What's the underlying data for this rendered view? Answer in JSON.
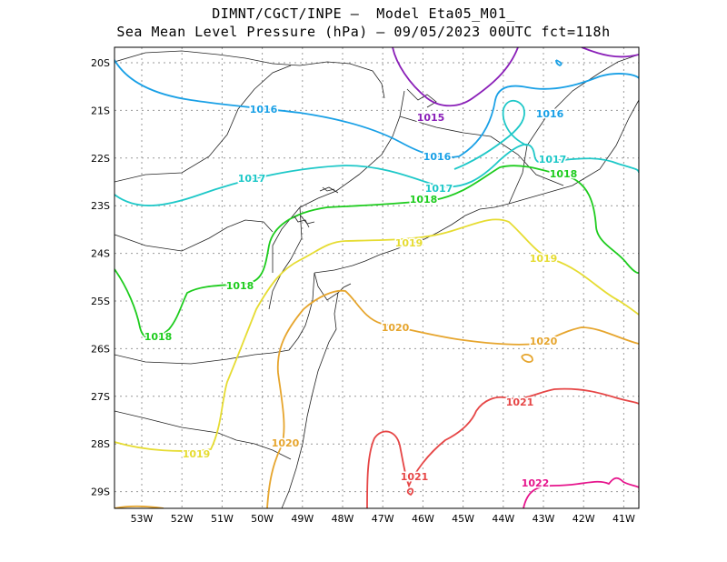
{
  "header": {
    "line1": "DIMNT/CGCT/INPE —  Model Eta05_M01_",
    "line2": "Sea Mean Level Pressure (hPa) — 09/05/2023 00UTC fct=118h"
  },
  "axes": {
    "lat_labels": [
      "20S",
      "21S",
      "22S",
      "23S",
      "24S",
      "25S",
      "26S",
      "27S",
      "28S",
      "29S"
    ],
    "lon_labels": [
      "53W",
      "52W",
      "51W",
      "50W",
      "49W",
      "48W",
      "47W",
      "46W",
      "45W",
      "44W",
      "43W",
      "42W",
      "41W"
    ]
  },
  "contours": [
    {
      "value": "1015",
      "color": "#8a1fb8"
    },
    {
      "value": "1016",
      "color": "#19a0e6"
    },
    {
      "value": "1017",
      "color": "#1ec8c8"
    },
    {
      "value": "1018",
      "color": "#1ecc1e"
    },
    {
      "value": "1019",
      "color": "#e6dc32"
    },
    {
      "value": "1020",
      "color": "#e6a52d"
    },
    {
      "value": "1021",
      "color": "#e64646"
    },
    {
      "value": "1022",
      "color": "#e6148c"
    }
  ]
}
